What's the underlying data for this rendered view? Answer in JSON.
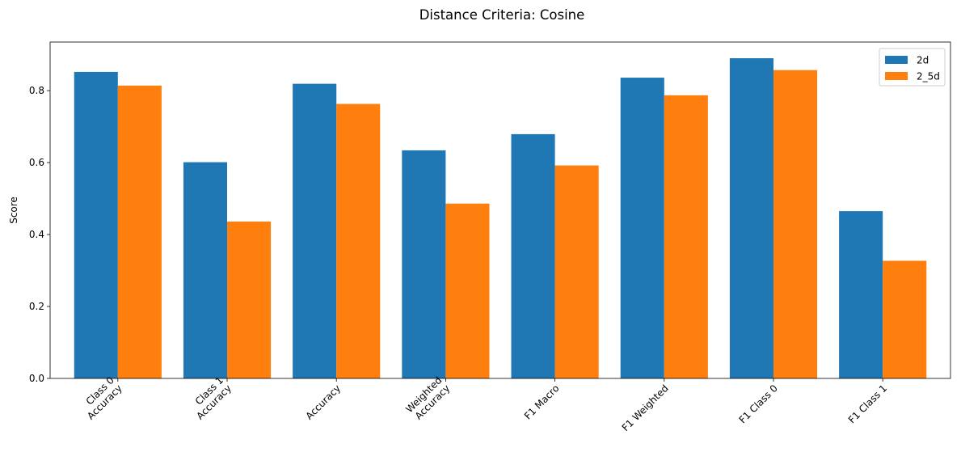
{
  "chart_data": {
    "type": "bar",
    "title": "Distance Criteria: Cosine",
    "xlabel": "",
    "ylabel": "Score",
    "categories": [
      "Class 0\nAccuracy",
      "Class 1\nAccuracy",
      "Accuracy",
      "Weighted\nAccuracy",
      "F1 Macro",
      "F1 Weighted",
      "F1 Class 0",
      "F1 Class 1"
    ],
    "series": [
      {
        "name": "2d",
        "color": "#1f77b4",
        "values": [
          0.852,
          0.601,
          0.819,
          0.634,
          0.679,
          0.836,
          0.89,
          0.465
        ]
      },
      {
        "name": "2_5d",
        "color": "#ff7f0e",
        "values": [
          0.814,
          0.436,
          0.763,
          0.486,
          0.592,
          0.787,
          0.857,
          0.327
        ]
      }
    ],
    "ylim": [
      0,
      0.935
    ],
    "yticks": [
      0.0,
      0.2,
      0.4,
      0.6,
      0.8
    ],
    "ytick_labels": [
      "0.0",
      "0.2",
      "0.4",
      "0.6",
      "0.8"
    ],
    "xtick_rotation_deg": 45,
    "grid": false,
    "legend_position": "top-right"
  }
}
